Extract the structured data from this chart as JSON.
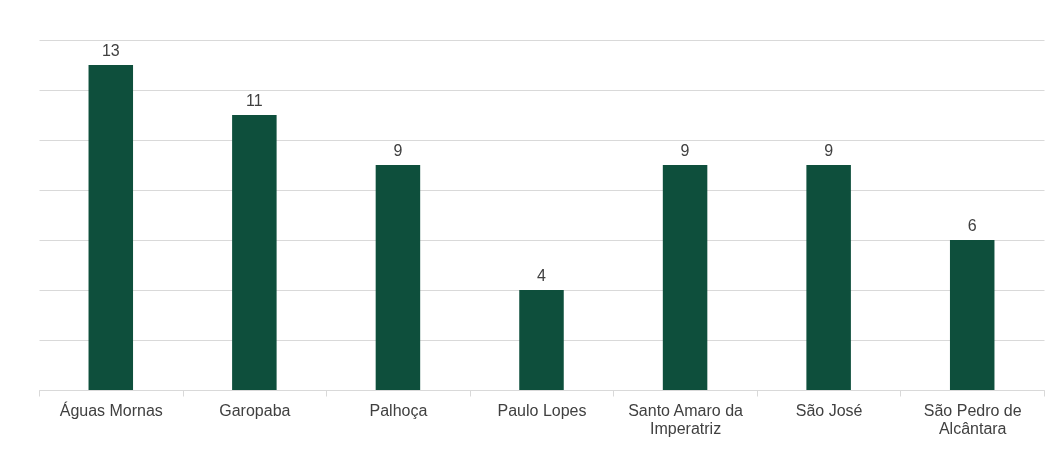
{
  "chart_data": {
    "type": "bar",
    "categories": [
      "Águas Mornas",
      "Garopaba",
      "Palhoça",
      "Paulo Lopes",
      "Santo Amaro da Imperatriz",
      "São José",
      "São Pedro de Alcântara"
    ],
    "values": [
      13,
      11,
      9,
      4,
      9,
      9,
      6
    ],
    "color": "#0e4f3c",
    "data_labels": true,
    "grid": "y",
    "tick_labels": "x",
    "ylim": [
      0,
      14
    ],
    "yticks": [
      {
        "value": 0,
        "label": null
      },
      {
        "value": 2,
        "label": null
      },
      {
        "value": 4,
        "label": null
      },
      {
        "value": 6,
        "label": null
      },
      {
        "value": 8,
        "label": null
      },
      {
        "value": 10,
        "label": null
      },
      {
        "value": 12,
        "label": null
      },
      {
        "value": 14,
        "label": null
      }
    ]
  }
}
